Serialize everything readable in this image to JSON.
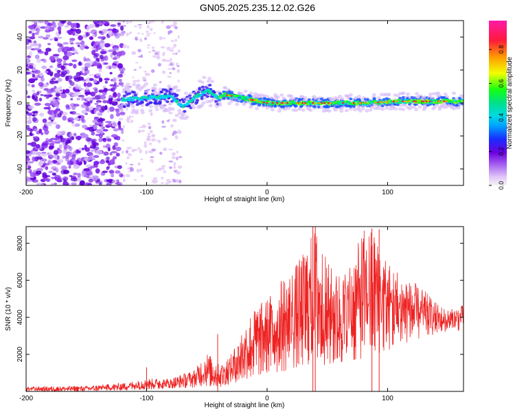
{
  "title": "GN05.2025.235.12.02.G26",
  "chart_data": [
    {
      "type": "heatmap",
      "name": "spectrogram",
      "xlabel": "Height of straight line (km)",
      "ylabel": "Frequency (Hz)",
      "xlim": [
        -200,
        163
      ],
      "ylim": [
        -50,
        50
      ],
      "xticks": [
        -200,
        -100,
        0,
        100
      ],
      "yticks": [
        -40,
        -20,
        0,
        20,
        40
      ],
      "colorbar": {
        "label": "Normalized spectral amplitude",
        "ticks": [
          0.0,
          0.2,
          0.4,
          0.6,
          0.8
        ],
        "range": [
          0,
          0.97
        ],
        "colors": [
          "#f4f4f4",
          "#e2c7f7",
          "#a25cf0",
          "#6a00e0",
          "#1a2cff",
          "#00d9e6",
          "#00e08a",
          "#12ff12",
          "#f2ff00",
          "#ff9a00",
          "#ff1a3c",
          "#ff1aa8"
        ]
      },
      "features": [
        {
          "label": "noise region",
          "x_range": [
            -200,
            -120
          ],
          "freq_range": [
            -50,
            50
          ],
          "amplitude": 0.1
        },
        {
          "label": "scattered noise",
          "x_range": [
            -120,
            -72
          ],
          "freq_range": [
            -50,
            50
          ],
          "amplitude": 0.05
        },
        {
          "label": "main signal line",
          "x": [
            -120,
            -100,
            -80,
            -70,
            -60,
            -50,
            -40,
            -35,
            -20,
            0,
            20,
            50,
            80,
            110,
            140,
            163
          ],
          "freq": [
            2,
            3,
            4,
            -2,
            3,
            8,
            3,
            5,
            3,
            0,
            0,
            0,
            0,
            1,
            1,
            1
          ],
          "peak_amplitude": 0.97
        }
      ]
    },
    {
      "type": "line",
      "name": "snr",
      "xlabel": "Height of straight line (km)",
      "ylabel": "SNR (10 * v/v)",
      "xlim": [
        -200,
        163
      ],
      "ylim": [
        0,
        8900
      ],
      "xticks": [
        -200,
        -100,
        0,
        100
      ],
      "yticks": [
        2000,
        4000,
        6000,
        8000
      ],
      "color": "#ee2222",
      "envelope": {
        "x": [
          -200,
          -150,
          -120,
          -100,
          -80,
          -60,
          -50,
          -40,
          -30,
          -20,
          -10,
          0,
          10,
          20,
          30,
          40,
          50,
          60,
          70,
          80,
          90,
          100,
          110,
          120,
          130,
          140,
          150,
          163
        ],
        "max": [
          250,
          300,
          450,
          700,
          700,
          1200,
          2100,
          1500,
          2000,
          3500,
          4600,
          5000,
          6000,
          6500,
          7500,
          8900,
          7000,
          6500,
          7000,
          8800,
          8700,
          7000,
          6500,
          6000,
          5500,
          4800,
          4400,
          4700
        ],
        "min": [
          0,
          0,
          50,
          100,
          150,
          200,
          300,
          200,
          400,
          600,
          800,
          1000,
          1000,
          1200,
          1400,
          1500,
          1400,
          1500,
          1600,
          1800,
          2000,
          2200,
          2500,
          2700,
          2900,
          3100,
          3200,
          3300
        ]
      },
      "spikes": [
        {
          "x": -100,
          "y": 1300
        },
        {
          "x": -41,
          "y": 3100
        },
        {
          "x": 38,
          "y": 8900
        },
        {
          "x": 40,
          "y": 8900
        },
        {
          "x": 87,
          "y": 8800
        },
        {
          "x": 93,
          "y": 8750
        }
      ]
    }
  ]
}
